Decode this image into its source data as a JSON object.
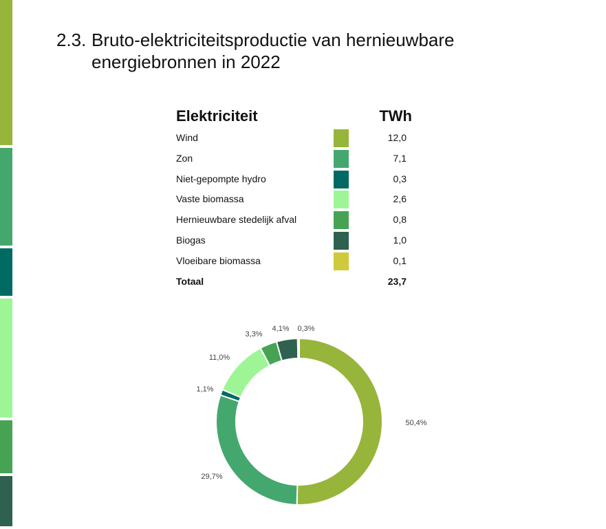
{
  "title": {
    "number": "2.3.",
    "text": "Bruto-elektriciteitsproductie van hernieuwbare energiebronnen in 2022"
  },
  "table": {
    "header_label": "Elektriciteit",
    "header_unit": "TWh",
    "rows": [
      {
        "label": "Wind",
        "value": "12,0",
        "color": "#97b53b"
      },
      {
        "label": "Zon",
        "value": "7,1",
        "color": "#44a86e"
      },
      {
        "label": "Niet-gepompte hydro",
        "value": "0,3",
        "color": "#006a63"
      },
      {
        "label": "Vaste biomassa",
        "value": "2,6",
        "color": "#9ef596"
      },
      {
        "label": "Hernieuwbare stedelijk afval",
        "value": "0,8",
        "color": "#47a354"
      },
      {
        "label": "Biogas",
        "value": "1,0",
        "color": "#2f6150"
      },
      {
        "label": "Vloeibare biomassa",
        "value": "0,1",
        "color": "#cfca3c"
      }
    ],
    "total_label": "Totaal",
    "total_value": "23,7"
  },
  "side_bar": {
    "segments": [
      {
        "color": "#97b53b",
        "fraction": 0.28
      },
      {
        "color": "#44a86e",
        "fraction": 0.19
      },
      {
        "color": "#006a63",
        "fraction": 0.095
      },
      {
        "color": "#9ef596",
        "fraction": 0.23
      },
      {
        "color": "#47a354",
        "fraction": 0.105
      },
      {
        "color": "#2f6150",
        "fraction": 0.1
      }
    ]
  },
  "chart_data": {
    "type": "pie",
    "categories": [
      "Wind",
      "Zon",
      "Niet-gepompte hydro",
      "Vaste biomassa",
      "Hernieuwbare stedelijk afval",
      "Biogas",
      "Vloeibare biomassa"
    ],
    "values": [
      50.4,
      29.7,
      1.1,
      11.0,
      3.3,
      4.1,
      0.3
    ],
    "labels": [
      "50,4%",
      "29,7%",
      "1,1%",
      "11,0%",
      "3,3%",
      "4,1%",
      "0,3%"
    ],
    "colors": [
      "#97b53b",
      "#44a86e",
      "#006a63",
      "#9ef596",
      "#47a354",
      "#2f6150",
      "#cfca3c"
    ],
    "donut": true,
    "unit": "%"
  }
}
